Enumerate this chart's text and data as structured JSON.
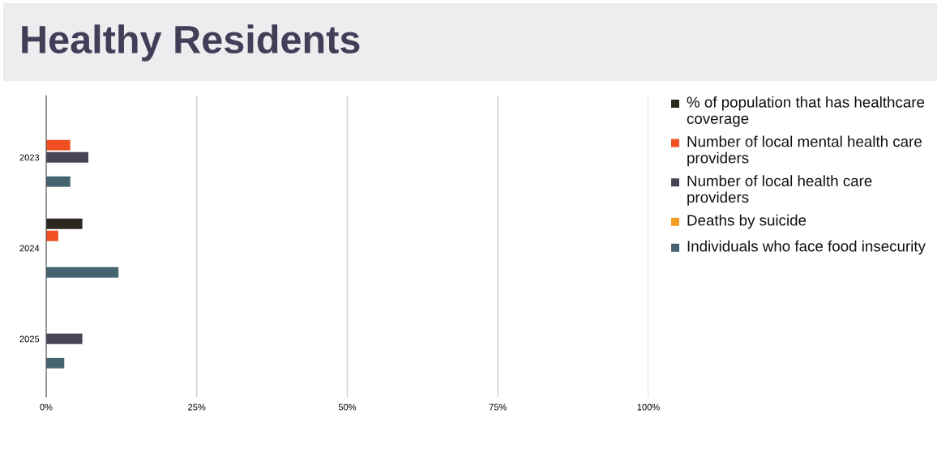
{
  "chart_data": {
    "type": "bar",
    "orientation": "horizontal",
    "title": "Healthy Residents",
    "categories": [
      "2023",
      "2024",
      "2025"
    ],
    "series": [
      {
        "name": "% of population that has healthcare coverage",
        "color": "#2b2820",
        "values": [
          null,
          6,
          null
        ]
      },
      {
        "name": "Number of local mental health care providers",
        "color": "#f04e23",
        "values": [
          4,
          2,
          null
        ]
      },
      {
        "name": "Number of local health care providers",
        "color": "#4a4458",
        "values": [
          7,
          null,
          6
        ]
      },
      {
        "name": "Deaths by suicide",
        "color": "#f39c1f",
        "values": [
          null,
          null,
          null
        ]
      },
      {
        "name": "Individuals who face food insecurity",
        "color": "#456470",
        "values": [
          4,
          12,
          3
        ]
      }
    ],
    "xlim": [
      0,
      100
    ],
    "xticks": [
      {
        "value": 0,
        "label": "0%"
      },
      {
        "value": 25,
        "label": "25%"
      },
      {
        "value": 50,
        "label": "50%"
      },
      {
        "value": 75,
        "label": "75%"
      },
      {
        "value": 100,
        "label": "100%"
      }
    ],
    "grid": "x",
    "legend": "right"
  }
}
